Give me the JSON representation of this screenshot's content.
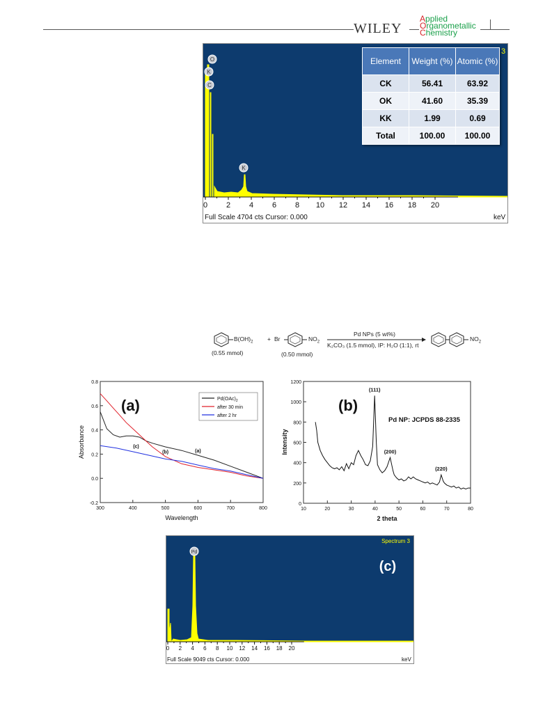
{
  "header": {
    "publisher": "WILEY",
    "journal_lines": [
      "Applied",
      "Organometallic",
      "Chemistry"
    ],
    "accent_red": "#d6252a",
    "accent_green": "#1aa04a"
  },
  "eds_top": {
    "corner_label": "3",
    "peak_labels": [
      "O",
      "K",
      "C",
      "K"
    ],
    "x_ticks": [
      "0",
      "2",
      "4",
      "6",
      "8",
      "10",
      "12",
      "14",
      "16",
      "18",
      "20"
    ],
    "footer_left": "Full Scale 4704 cts Cursor: 0.000",
    "footer_right": "keV",
    "table": {
      "headers": [
        "Element",
        "Weight (%)",
        "Atomic (%)"
      ],
      "rows": [
        [
          "CK",
          "56.41",
          "63.92"
        ],
        [
          "OK",
          "41.60",
          "35.39"
        ],
        [
          "KK",
          "1.99",
          "0.69"
        ],
        [
          "Total",
          "100.00",
          "100.00"
        ]
      ]
    },
    "colors": {
      "background": "#0d3b6e",
      "trace": "#ffff00"
    }
  },
  "scheme": {
    "reactant1": "B(OH)",
    "reactant1_sub": "2",
    "plus": "+",
    "reactant2_prefix": "Br",
    "reactant2_suffix": "NO",
    "reactant2_sub": "2",
    "amount1": "(0.55 mmol)",
    "amount2": "(0.50 mmol)",
    "condition_top": "Pd NPs (5 wt%)",
    "condition_bottom": "K₂CO₃ (1.5 mmol), IP: H₂O (1:1), rt",
    "product_suffix": "NO",
    "product_sub": "2"
  },
  "chart_data": [
    {
      "type": "line",
      "panel_label": "(a)",
      "xlabel": "Wavelength",
      "ylabel": "Absorbance",
      "xlim": [
        300,
        800
      ],
      "ylim": [
        -0.2,
        0.8
      ],
      "x_ticks": [
        "300",
        "400",
        "500",
        "600",
        "700",
        "800"
      ],
      "y_ticks": [
        "-0.2",
        "0.0",
        "0.2",
        "0.4",
        "0.6",
        "0.8"
      ],
      "legend_position": "top-right",
      "series": [
        {
          "name": "Pd(OAc)",
          "name_sub": "2",
          "curve_label": "(a)",
          "color": "#222222",
          "x": [
            300,
            310,
            320,
            340,
            360,
            380,
            400,
            420,
            440,
            460,
            500,
            550,
            600,
            650,
            700,
            750,
            800
          ],
          "y": [
            0.55,
            0.48,
            0.41,
            0.36,
            0.34,
            0.35,
            0.35,
            0.34,
            0.31,
            0.29,
            0.26,
            0.23,
            0.19,
            0.15,
            0.1,
            0.05,
            0.0
          ]
        },
        {
          "name": "after 30 min",
          "curve_label": "(b)",
          "color": "#e0202a",
          "x": [
            300,
            320,
            340,
            360,
            380,
            400,
            420,
            440,
            460,
            480,
            500,
            550,
            600,
            650,
            700,
            750,
            800
          ],
          "y": [
            0.7,
            0.64,
            0.58,
            0.52,
            0.46,
            0.41,
            0.36,
            0.31,
            0.26,
            0.22,
            0.18,
            0.12,
            0.09,
            0.07,
            0.05,
            0.02,
            0.0
          ]
        },
        {
          "name": "after 2 hr",
          "curve_label": "(c)",
          "color": "#2030e0",
          "x": [
            300,
            350,
            400,
            450,
            500,
            550,
            600,
            650,
            700,
            750,
            800
          ],
          "y": [
            0.27,
            0.25,
            0.22,
            0.19,
            0.16,
            0.14,
            0.11,
            0.08,
            0.06,
            0.03,
            0.0
          ]
        }
      ]
    },
    {
      "type": "line",
      "panel_label": "(b)",
      "annotation": "Pd NP: JCPDS 88-2335",
      "xlabel": "2 theta",
      "ylabel": "Intensity",
      "xlim": [
        10,
        80
      ],
      "ylim": [
        0,
        1200
      ],
      "x_ticks": [
        "10",
        "20",
        "30",
        "40",
        "50",
        "60",
        "70",
        "80"
      ],
      "y_ticks": [
        "0",
        "200",
        "400",
        "600",
        "800",
        "1000",
        "1200"
      ],
      "peak_labels": [
        {
          "text": "(111)",
          "x": 39.8,
          "y": 1060
        },
        {
          "text": "(200)",
          "x": 46.3,
          "y": 450
        },
        {
          "text": "(220)",
          "x": 67.7,
          "y": 280
        }
      ],
      "series": [
        {
          "color": "#111111",
          "x": [
            15,
            15.5,
            16,
            17,
            18,
            19,
            20,
            21,
            22,
            23,
            24,
            25,
            26,
            27,
            28,
            29,
            30,
            31,
            32,
            33,
            34,
            35,
            36,
            37,
            38,
            39,
            39.8,
            40.5,
            41,
            42,
            43,
            44,
            45,
            46.3,
            47.5,
            48,
            49,
            50,
            51,
            52,
            53,
            54,
            55,
            56,
            57,
            58,
            59,
            60,
            61,
            62,
            63,
            64,
            65,
            66,
            67,
            67.7,
            68.5,
            69,
            70,
            71,
            72,
            73,
            74,
            75,
            76,
            77,
            78,
            79,
            80
          ],
          "y": [
            800,
            720,
            600,
            520,
            470,
            430,
            400,
            370,
            350,
            340,
            350,
            330,
            360,
            320,
            390,
            340,
            400,
            380,
            470,
            520,
            470,
            430,
            380,
            370,
            420,
            560,
            1060,
            600,
            380,
            330,
            300,
            320,
            360,
            450,
            320,
            280,
            250,
            230,
            240,
            220,
            230,
            260,
            240,
            260,
            240,
            230,
            220,
            210,
            200,
            210,
            190,
            200,
            190,
            180,
            210,
            280,
            220,
            200,
            180,
            170,
            160,
            170,
            150,
            160,
            140,
            150,
            140,
            150,
            150
          ]
        }
      ]
    }
  ],
  "eds_bottom": {
    "corner_label": "Spectrum 3",
    "panel_label": "(c)",
    "peak_label": "Pd",
    "x_ticks": [
      "0",
      "2",
      "4",
      "6",
      "8",
      "10",
      "12",
      "14",
      "16",
      "18",
      "20"
    ],
    "footer_left": "Full Scale 9049 cts Cursor: 0.000",
    "footer_right": "keV",
    "colors": {
      "background": "#0d3b6e",
      "trace": "#ffff00"
    }
  }
}
